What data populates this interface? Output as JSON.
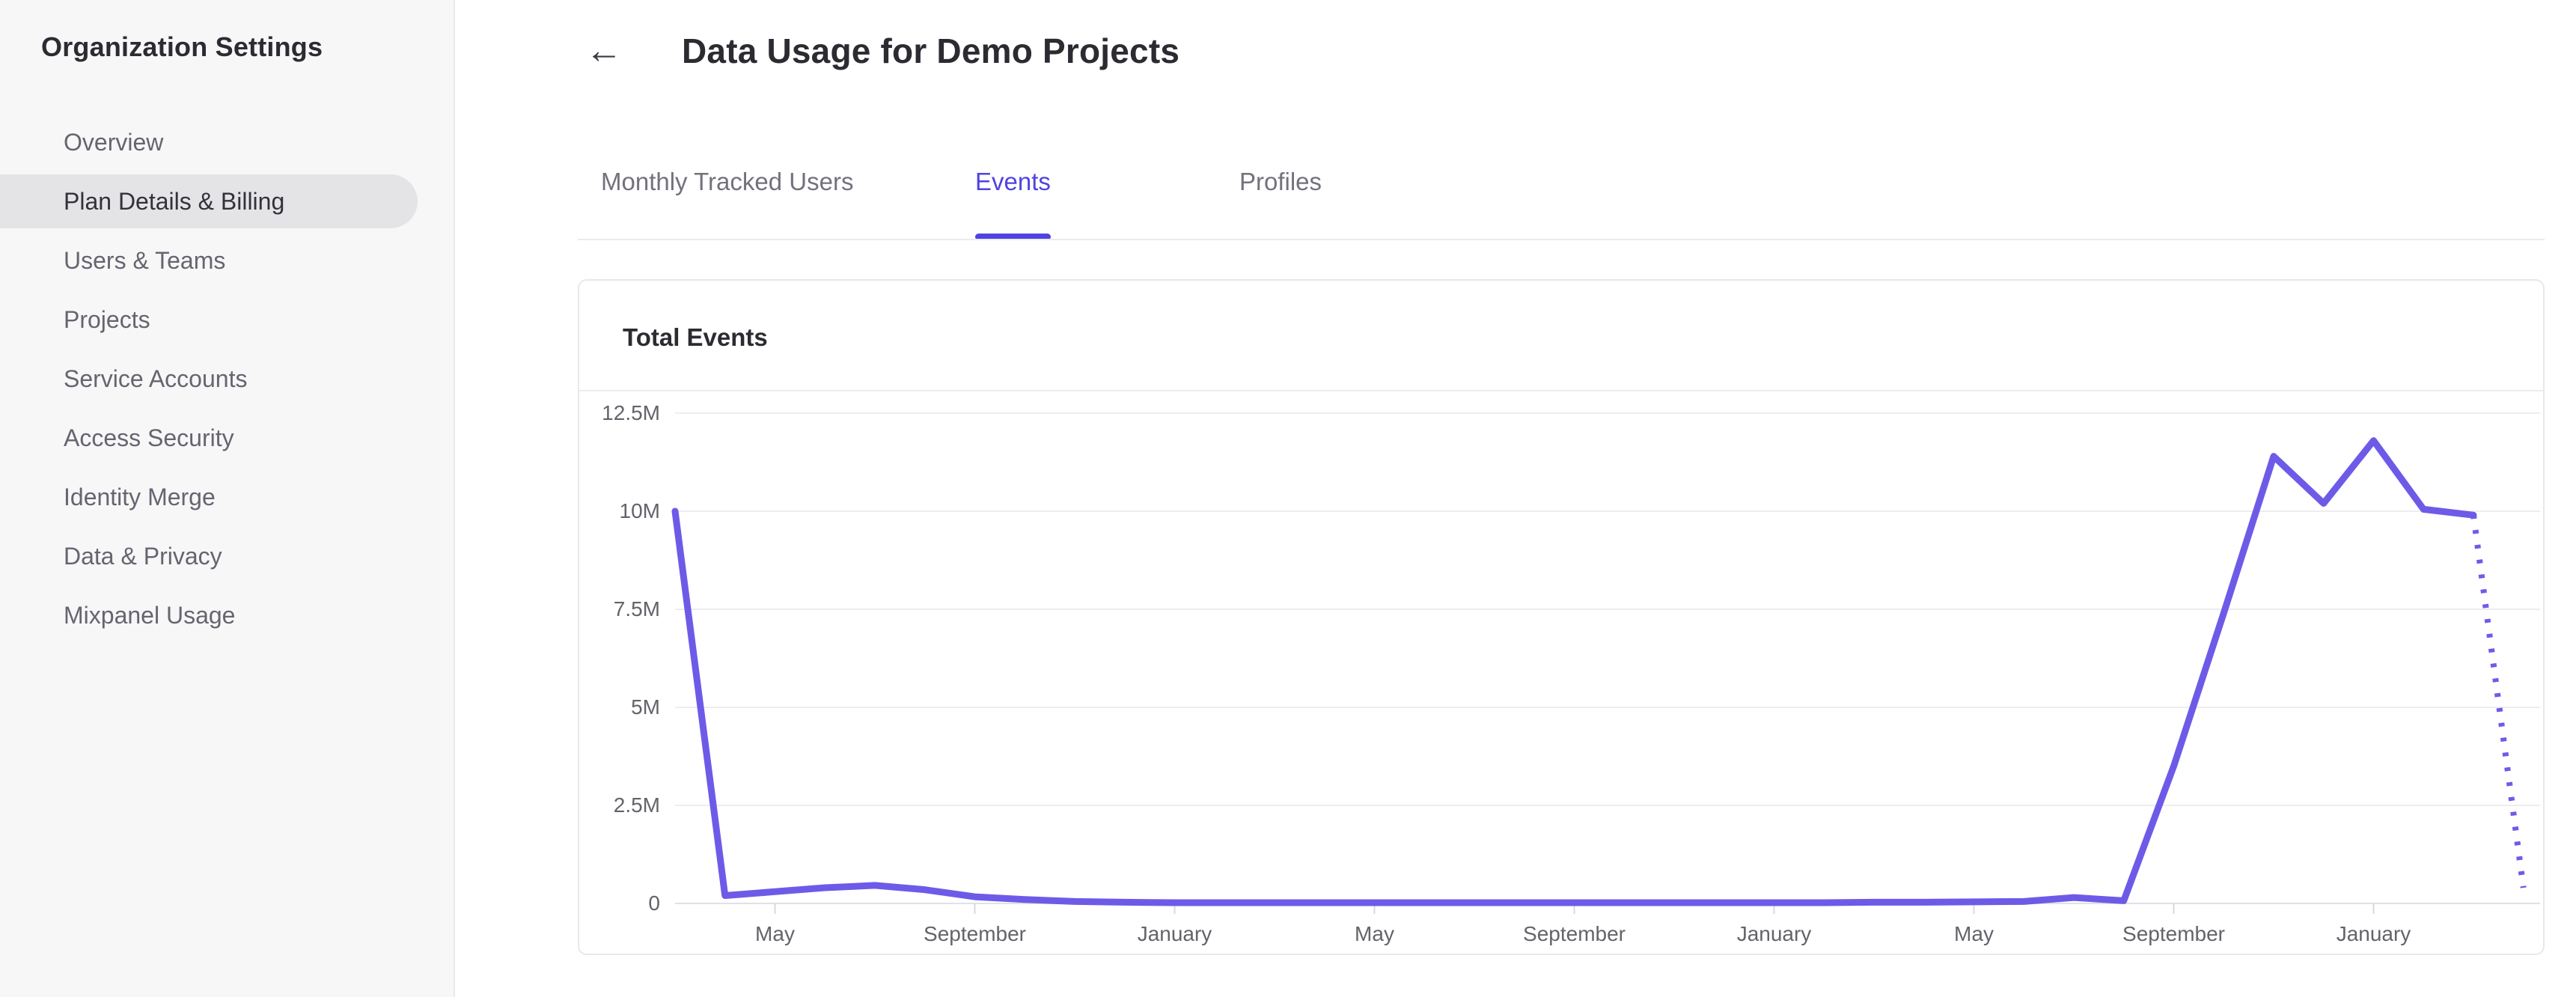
{
  "sidebar": {
    "title": "Organization Settings",
    "items": [
      {
        "label": "Overview",
        "selected": false
      },
      {
        "label": "Plan Details & Billing",
        "selected": true
      },
      {
        "label": "Users & Teams",
        "selected": false
      },
      {
        "label": "Projects",
        "selected": false
      },
      {
        "label": "Service Accounts",
        "selected": false
      },
      {
        "label": "Access Security",
        "selected": false
      },
      {
        "label": "Identity Merge",
        "selected": false
      },
      {
        "label": "Data & Privacy",
        "selected": false
      },
      {
        "label": "Mixpanel Usage",
        "selected": false
      }
    ]
  },
  "header": {
    "back_icon": "←",
    "title": "Data Usage for Demo Projects"
  },
  "tabs": [
    {
      "label": "Monthly Tracked Users",
      "active": false
    },
    {
      "label": "Events",
      "active": true
    },
    {
      "label": "Profiles",
      "active": false
    }
  ],
  "card": {
    "title": "Total Events"
  },
  "colors": {
    "accent_purple": "#4f43e1",
    "line_purple": "#6d5be8",
    "sidebar_bg": "#f7f7f8",
    "selected_pill": "#e4e4e7",
    "text_dark": "#2b2b31",
    "text_gray": "#72727c",
    "gridline": "#ededef"
  },
  "chart_data": {
    "type": "line",
    "title": "Total Events",
    "unit": "millions of events per month",
    "grid": true,
    "legend": false,
    "ylim": [
      0,
      12.5
    ],
    "y_ticks": [
      "0",
      "2.5M",
      "5M",
      "7.5M",
      "10M",
      "12.5M"
    ],
    "y_tick_values": [
      0,
      2.5,
      5,
      7.5,
      10,
      12.5
    ],
    "x_tick_labels": [
      "May",
      "September",
      "January",
      "May",
      "September",
      "January",
      "May",
      "September",
      "January"
    ],
    "x_tick_month_indices": [
      2,
      6,
      10,
      14,
      18,
      22,
      26,
      30,
      34
    ],
    "series": [
      {
        "name": "Total Events",
        "values_millions": [
          10,
          0.2,
          0.3,
          0.4,
          0.46,
          0.35,
          0.17,
          0.1,
          0.05,
          0.03,
          0.02,
          0.02,
          0.02,
          0.02,
          0.02,
          0.02,
          0.02,
          0.02,
          0.02,
          0.02,
          0.02,
          0.02,
          0.02,
          0.02,
          0.03,
          0.03,
          0.04,
          0.05,
          0.15,
          0.07,
          3.5,
          7.4,
          11.4,
          10.2,
          11.8,
          10.05,
          9.9,
          0.4
        ],
        "solid_until_index": 36,
        "dotted_tail": true
      }
    ]
  }
}
